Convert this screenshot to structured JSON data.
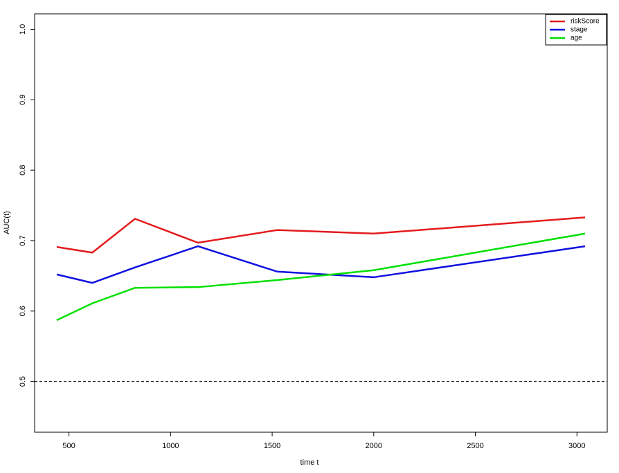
{
  "chart_data": {
    "type": "line",
    "x_label": "time t",
    "y_label": "AUC(t)",
    "x": [
      440,
      615,
      825,
      1135,
      1525,
      2000,
      3040
    ],
    "series": [
      {
        "name": "riskScore",
        "color": "#e41a1c",
        "values": [
          0.691,
          0.683,
          0.731,
          0.697,
          0.715,
          0.71,
          0.733
        ]
      },
      {
        "name": "stage",
        "color": "#1010e0",
        "values": [
          0.652,
          0.64,
          0.662,
          0.692,
          0.656,
          0.648,
          0.692
        ]
      },
      {
        "name": "age",
        "color": "#00e000",
        "values": [
          0.587,
          0.611,
          0.633,
          0.634,
          0.644,
          0.658,
          0.71
        ]
      }
    ],
    "xlim": [
      331,
      3149
    ],
    "ylim": [
      0.428,
      1.022
    ],
    "xticks": [
      500,
      1000,
      1500,
      2000,
      2500,
      3000
    ],
    "yticks": [
      0.5,
      0.6,
      0.7,
      0.8,
      0.9,
      {
        "value": 1,
        "label": "1.0"
      }
    ],
    "hline": 0.5,
    "legend": "top-right"
  }
}
